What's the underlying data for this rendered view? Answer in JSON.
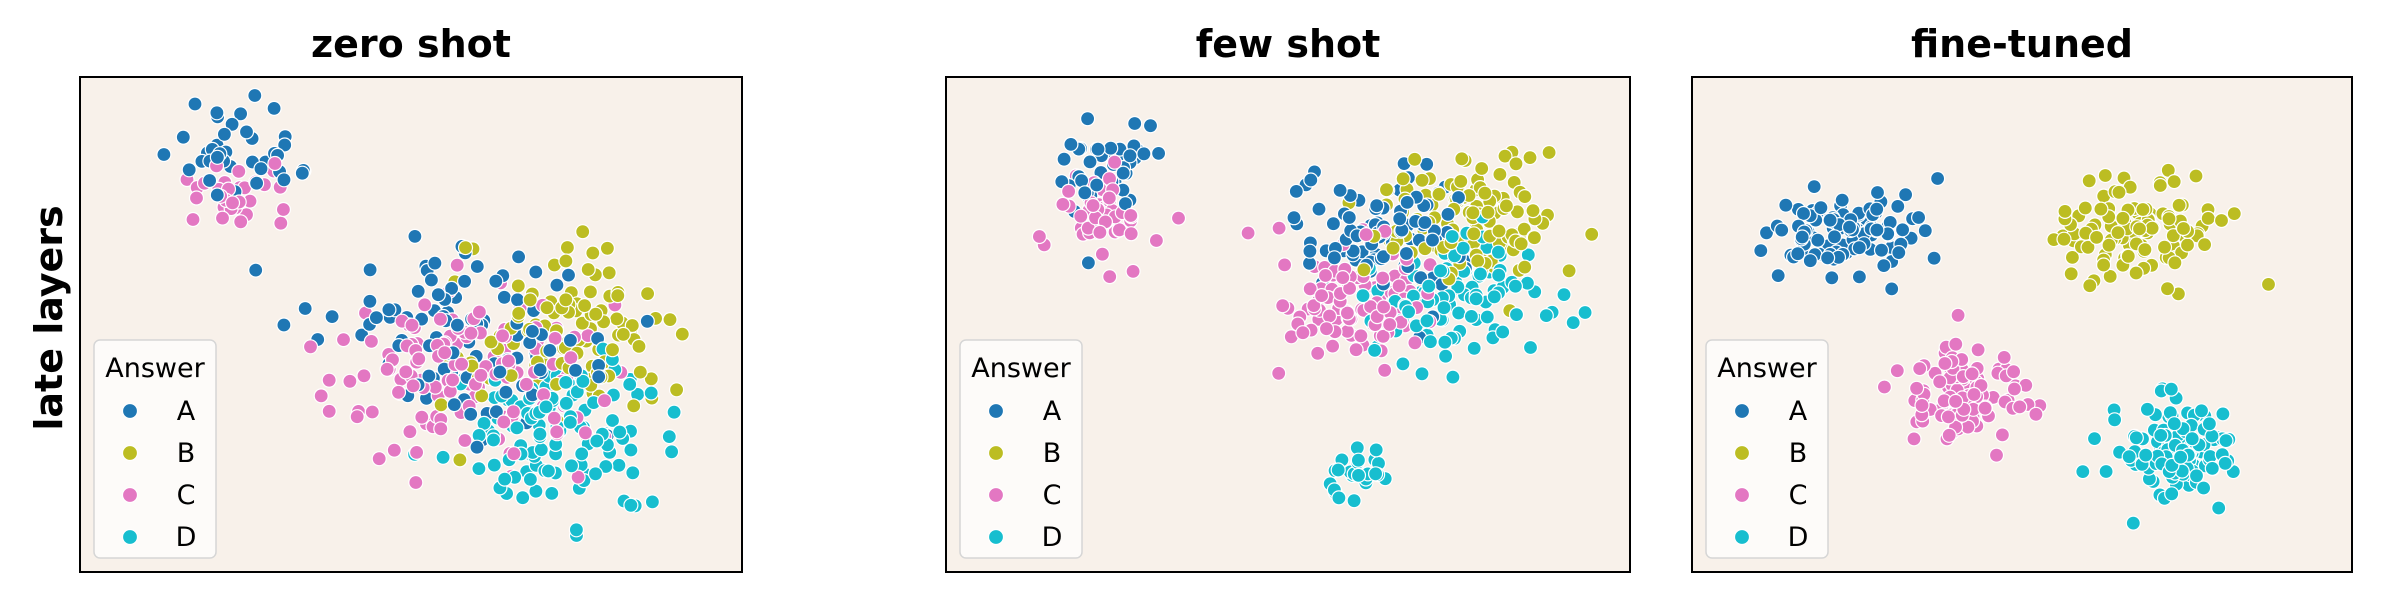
{
  "figure": {
    "row_label": "late layers",
    "plot_background": "#f8f1ea",
    "legend_background": "#fdfbf9"
  },
  "chart_data": [
    {
      "type": "scatter",
      "title": "zero shot",
      "xlabel": "",
      "ylabel": "late layers",
      "grid": false,
      "legend": {
        "title": "Answer",
        "placement": "lower-left",
        "entries": [
          "A",
          "B",
          "C",
          "D"
        ]
      },
      "series": [
        {
          "name": "A",
          "color": "#1f77b4",
          "count": 150,
          "clusters": [
            {
              "cx": 0.24,
              "cy": 0.84,
              "sx": 0.05,
              "sy": 0.05,
              "share": 0.28
            },
            {
              "cx": 0.58,
              "cy": 0.47,
              "sx": 0.1,
              "sy": 0.1,
              "share": 0.72
            }
          ]
        },
        {
          "name": "B",
          "color": "#bcbd22",
          "count": 110,
          "clusters": [
            {
              "cx": 0.73,
              "cy": 0.47,
              "sx": 0.08,
              "sy": 0.085,
              "share": 1.0
            }
          ]
        },
        {
          "name": "C",
          "color": "#e377c2",
          "count": 170,
          "clusters": [
            {
              "cx": 0.24,
              "cy": 0.75,
              "sx": 0.045,
              "sy": 0.035,
              "share": 0.18
            },
            {
              "cx": 0.59,
              "cy": 0.39,
              "sx": 0.1,
              "sy": 0.09,
              "share": 0.82
            }
          ]
        },
        {
          "name": "D",
          "color": "#17becf",
          "count": 120,
          "clusters": [
            {
              "cx": 0.72,
              "cy": 0.28,
              "sx": 0.085,
              "sy": 0.08,
              "share": 1.0
            }
          ]
        }
      ]
    },
    {
      "type": "scatter",
      "title": "few shot",
      "xlabel": "",
      "ylabel": "",
      "grid": false,
      "legend": {
        "title": "Answer",
        "placement": "lower-left",
        "entries": [
          "A",
          "B",
          "C",
          "D"
        ]
      },
      "series": [
        {
          "name": "A",
          "color": "#1f77b4",
          "count": 150,
          "clusters": [
            {
              "cx": 0.23,
              "cy": 0.82,
              "sx": 0.035,
              "sy": 0.05,
              "share": 0.3
            },
            {
              "cx": 0.64,
              "cy": 0.69,
              "sx": 0.065,
              "sy": 0.06,
              "share": 0.7
            }
          ]
        },
        {
          "name": "B",
          "color": "#bcbd22",
          "count": 120,
          "clusters": [
            {
              "cx": 0.77,
              "cy": 0.71,
              "sx": 0.065,
              "sy": 0.06,
              "share": 1.0
            }
          ]
        },
        {
          "name": "C",
          "color": "#e377c2",
          "count": 155,
          "clusters": [
            {
              "cx": 0.23,
              "cy": 0.73,
              "sx": 0.035,
              "sy": 0.045,
              "share": 0.32
            },
            {
              "cx": 0.6,
              "cy": 0.55,
              "sx": 0.055,
              "sy": 0.07,
              "share": 0.68
            }
          ]
        },
        {
          "name": "D",
          "color": "#17becf",
          "count": 125,
          "clusters": [
            {
              "cx": 0.74,
              "cy": 0.55,
              "sx": 0.06,
              "sy": 0.065,
              "share": 0.8
            },
            {
              "cx": 0.6,
              "cy": 0.21,
              "sx": 0.025,
              "sy": 0.035,
              "share": 0.2
            }
          ]
        }
      ]
    },
    {
      "type": "scatter",
      "title": "fine-tuned",
      "xlabel": "",
      "ylabel": "",
      "grid": false,
      "legend": {
        "title": "Answer",
        "placement": "lower-left",
        "entries": [
          "A",
          "B",
          "C",
          "D"
        ]
      },
      "series": [
        {
          "name": "A",
          "color": "#1f77b4",
          "count": 110,
          "clusters": [
            {
              "cx": 0.24,
              "cy": 0.69,
              "sx": 0.055,
              "sy": 0.045,
              "share": 1.0
            }
          ]
        },
        {
          "name": "B",
          "color": "#bcbd22",
          "count": 120,
          "clusters": [
            {
              "cx": 0.68,
              "cy": 0.7,
              "sx": 0.06,
              "sy": 0.05,
              "share": 1.0
            }
          ]
        },
        {
          "name": "C",
          "color": "#e377c2",
          "count": 110,
          "clusters": [
            {
              "cx": 0.41,
              "cy": 0.36,
              "sx": 0.045,
              "sy": 0.05,
              "share": 1.0
            }
          ]
        },
        {
          "name": "D",
          "color": "#17becf",
          "count": 130,
          "clusters": [
            {
              "cx": 0.74,
              "cy": 0.24,
              "sx": 0.045,
              "sy": 0.05,
              "share": 1.0
            }
          ]
        }
      ]
    }
  ]
}
